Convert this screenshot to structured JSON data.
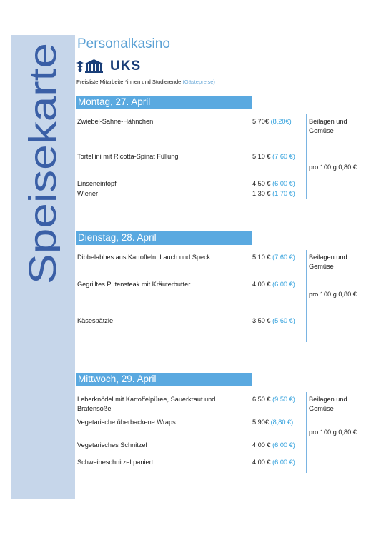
{
  "sidebar": {
    "title": "Speisekarte"
  },
  "header": {
    "title": "Personalkasino",
    "logo_text": "UKS",
    "subtitle": "Preisliste Mitarbeiter*innen und Studierende",
    "subtitle_guest": "(Gästepreise)"
  },
  "days": [
    {
      "label": "Montag, 27. April",
      "side_dish": "Beilagen und Gemüse",
      "per_weight": "pro 100 g 0,80 €",
      "items": [
        {
          "dish": "Zwiebel-Sahne-Hähnchen",
          "price": "5,70€",
          "guest_price": "(8,20€)"
        },
        {
          "dish": "Tortellini mit Ricotta-Spinat Füllung",
          "price": "5,10 €",
          "guest_price": "(7,60 €)"
        },
        {
          "dish": "Linseneintopf",
          "price": "4,50 €",
          "guest_price": "(6,00 €)"
        },
        {
          "dish": "Wiener",
          "price": "1,30 €",
          "guest_price": "(1,70 €)"
        }
      ]
    },
    {
      "label": "Dienstag, 28. April",
      "side_dish": "Beilagen und Gemüse",
      "per_weight": "pro 100 g 0,80 €",
      "items": [
        {
          "dish": "Dibbelabbes aus Kartoffeln, Lauch und Speck",
          "price": "5,10 €",
          "guest_price": "(7,60 €)"
        },
        {
          "dish": "Gegrilltes Putensteak mit Kräuterbutter",
          "price": "4,00 €",
          "guest_price": "(6,00 €)"
        },
        {
          "dish": "Käsespätzle",
          "price": "3,50 €",
          "guest_price": "(5,60 €)"
        }
      ]
    },
    {
      "label": "Mittwoch, 29. April",
      "side_dish": "Beilagen und Gemüse",
      "per_weight": "pro 100 g 0,80 €",
      "items": [
        {
          "dish": "Leberknödel mit Kartoffelpüree, Sauerkraut und Bratensoße",
          "price": "6,50 €",
          "guest_price": "(9,50 €)"
        },
        {
          "dish": "Vegetarische überbackene Wraps",
          "price": "5,90€",
          "guest_price": "(8,80 €)"
        },
        {
          "dish": "Vegetarisches Schnitzel",
          "price": "4,00 €",
          "guest_price": "(6,00 €)"
        },
        {
          "dish": "Schweineschnitzel paniert",
          "price": "4,00 €",
          "guest_price": "(6,00 €)"
        }
      ]
    }
  ],
  "colors": {
    "accent": "#5aa9e0",
    "sidebar": "#c6d6ea",
    "sidebar_text": "#3a5fa6",
    "guest_price": "#2e9fdc",
    "logo": "#1a3e78"
  }
}
